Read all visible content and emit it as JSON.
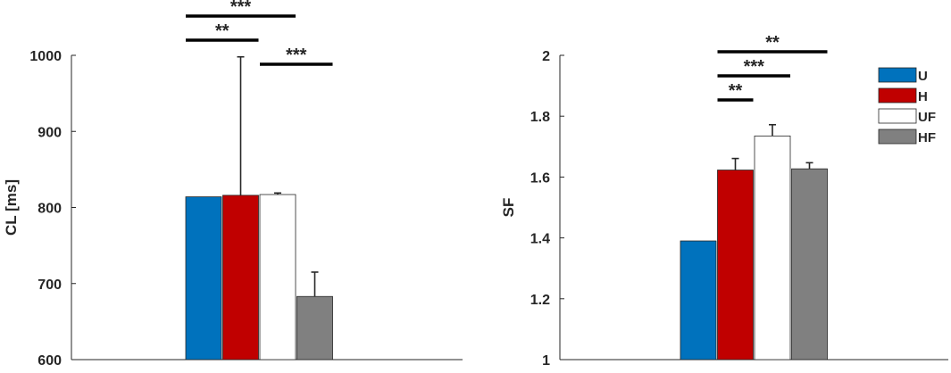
{
  "chart_data": [
    {
      "type": "bar",
      "title": "",
      "xlabel": "",
      "ylabel": "CL [ms]",
      "ylim": [
        600,
        1000
      ],
      "yticks": [
        "600",
        "700",
        "800",
        "900",
        "1000"
      ],
      "grid": false,
      "series": [
        {
          "name": "U",
          "value": 814,
          "error": null,
          "color": "#0072BD"
        },
        {
          "name": "H",
          "value": 816,
          "error": 182,
          "color": "#C00000"
        },
        {
          "name": "UF",
          "value": 817,
          "error": 2,
          "color": "#FFFFFF"
        },
        {
          "name": "HF",
          "value": 683,
          "error": 32,
          "color": "#808080"
        }
      ],
      "significance": [
        {
          "from": "U",
          "to": "UF",
          "label": "***",
          "level": 3
        },
        {
          "from": "U",
          "to": "H",
          "label": "**",
          "level": 2
        },
        {
          "from": "UF",
          "to": "HF",
          "label": "***",
          "level": 1
        }
      ]
    },
    {
      "type": "bar",
      "title": "",
      "xlabel": "",
      "ylabel": "SF",
      "ylim": [
        1,
        2
      ],
      "yticks": [
        "1",
        "1.2",
        "1.4",
        "1.6",
        "1.8",
        "2"
      ],
      "grid": false,
      "legend_position": "top-right",
      "series": [
        {
          "name": "U",
          "value": 1.39,
          "error": null,
          "color": "#0072BD"
        },
        {
          "name": "H",
          "value": 1.623,
          "error": 0.038,
          "color": "#C00000"
        },
        {
          "name": "UF",
          "value": 1.735,
          "error": 0.037,
          "color": "#FFFFFF"
        },
        {
          "name": "HF",
          "value": 1.627,
          "error": 0.02,
          "color": "#808080"
        }
      ],
      "significance": [
        {
          "from": "H",
          "to": "HF",
          "label": "**",
          "level": 3
        },
        {
          "from": "H",
          "to": "UF",
          "label": "***",
          "level": 2
        },
        {
          "from": "H",
          "to": "H",
          "label": "**",
          "level": 1
        }
      ]
    }
  ]
}
